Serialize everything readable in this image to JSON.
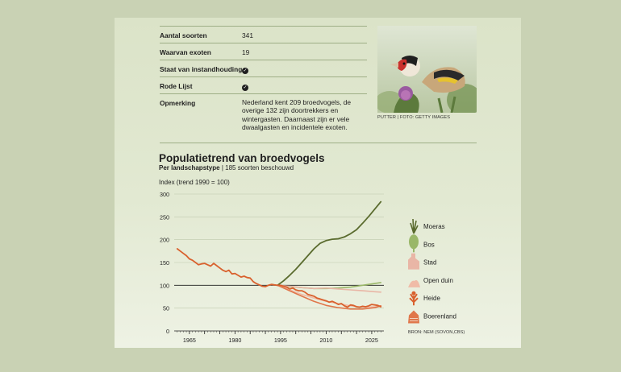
{
  "facts": {
    "rows": [
      {
        "label": "Aantal soorten",
        "value": "341"
      },
      {
        "label": "Waarvan exoten",
        "value": "19"
      },
      {
        "label": "Staat van instandhouding",
        "value": "✓"
      },
      {
        "label": "Rode Lijst",
        "value": "✓"
      },
      {
        "label": "Opmerking",
        "value": "Nederland kent 209 broedvogels, de overige 132 zijn doortrekkers en wintergasten. Daarnaast zijn er vele dwaalgasten en incidentele exoten."
      }
    ]
  },
  "photo": {
    "caption": "PUTTER | FOTO: GETTY IMAGES"
  },
  "chart_data": {
    "type": "line",
    "title": "Populatietrend van broedvogels",
    "subtitle_bold": "Per landschapstype",
    "subtitle_rest": " | 185 soorten beschouwd",
    "ylabel": "Index (trend 1990 = 100)",
    "xlabel": "",
    "xlim": [
      1960,
      2029
    ],
    "ylim": [
      0,
      300
    ],
    "x_ticks": [
      1965,
      1980,
      1995,
      2010,
      2025
    ],
    "y_ticks": [
      0,
      50,
      100,
      150,
      200,
      250,
      300
    ],
    "reference_line": 100,
    "source": "BRON: NEM (SOVON,CBS)",
    "series": [
      {
        "name": "Heide",
        "color": "#d9612e",
        "x": [
          1961,
          1962,
          1963,
          1964,
          1965,
          1966,
          1967,
          1968,
          1969,
          1970,
          1971,
          1972,
          1973,
          1974,
          1975,
          1976,
          1977,
          1978,
          1979,
          1980,
          1981,
          1982,
          1983,
          1984,
          1985,
          1986,
          1987,
          1988,
          1989,
          1990,
          1991,
          1992,
          1993,
          1994,
          1995,
          1996,
          1997,
          1998,
          1999,
          2000,
          2001,
          2002,
          2003,
          2004,
          2005,
          2006,
          2007,
          2008,
          2009,
          2010,
          2011,
          2012,
          2013,
          2014,
          2015,
          2016,
          2017,
          2018,
          2019,
          2020,
          2021,
          2022,
          2023,
          2024,
          2025,
          2026,
          2027,
          2028
        ],
        "values": [
          180,
          175,
          170,
          165,
          158,
          155,
          150,
          145,
          147,
          148,
          145,
          142,
          148,
          143,
          138,
          133,
          130,
          133,
          125,
          126,
          122,
          118,
          120,
          117,
          116,
          108,
          104,
          101,
          98,
          97,
          100,
          102,
          101,
          100,
          100,
          98,
          96,
          92,
          94,
          90,
          88,
          88,
          85,
          80,
          78,
          76,
          72,
          70,
          68,
          66,
          63,
          65,
          62,
          58,
          60,
          55,
          52,
          57,
          56,
          53,
          52,
          54,
          53,
          55,
          58,
          57,
          56,
          53
        ]
      },
      {
        "name": "Moeras",
        "color": "#5a6b2e",
        "x": [
          1994,
          1996,
          1998,
          2000,
          2002,
          2004,
          2006,
          2008,
          2010,
          2012,
          2014,
          2016,
          2018,
          2020,
          2022,
          2024,
          2026,
          2028
        ],
        "values": [
          100,
          110,
          122,
          135,
          150,
          165,
          180,
          192,
          198,
          201,
          202,
          206,
          213,
          222,
          236,
          251,
          267,
          283
        ]
      },
      {
        "name": "Bos",
        "color": "#9ab769",
        "x": [
          1994,
          1998,
          2002,
          2006,
          2010,
          2014,
          2018,
          2022,
          2026,
          2028
        ],
        "values": [
          100,
          97,
          95,
          93,
          93,
          94,
          96,
          100,
          104,
          106
        ]
      },
      {
        "name": "Stad",
        "color": "#e9b6a6",
        "x": [
          1994,
          1998,
          2002,
          2006,
          2010,
          2014,
          2018,
          2022,
          2026,
          2028
        ],
        "values": [
          100,
          98,
          95,
          93,
          94,
          92,
          90,
          88,
          86,
          85
        ]
      },
      {
        "name": "Open duin",
        "color": "#f0bba7",
        "x": [
          1994,
          1998,
          2002,
          2006,
          2010,
          2014,
          2018,
          2022,
          2026,
          2028
        ],
        "values": [
          100,
          90,
          80,
          72,
          65,
          60,
          55,
          52,
          53,
          55
        ]
      },
      {
        "name": "Boerenland",
        "color": "#e0764a",
        "x": [
          1994,
          1998,
          2002,
          2006,
          2010,
          2014,
          2018,
          2022,
          2026,
          2028
        ],
        "values": [
          100,
          88,
          76,
          65,
          56,
          51,
          48,
          48,
          51,
          55
        ]
      }
    ],
    "legend": [
      {
        "name": "Moeras",
        "icon": "reed-icon"
      },
      {
        "name": "Bos",
        "icon": "tree-icon"
      },
      {
        "name": "Stad",
        "icon": "city-icon"
      },
      {
        "name": "Open duin",
        "icon": "dune-icon"
      },
      {
        "name": "Heide",
        "icon": "heather-icon"
      },
      {
        "name": "Boerenland",
        "icon": "farmland-icon"
      }
    ]
  }
}
